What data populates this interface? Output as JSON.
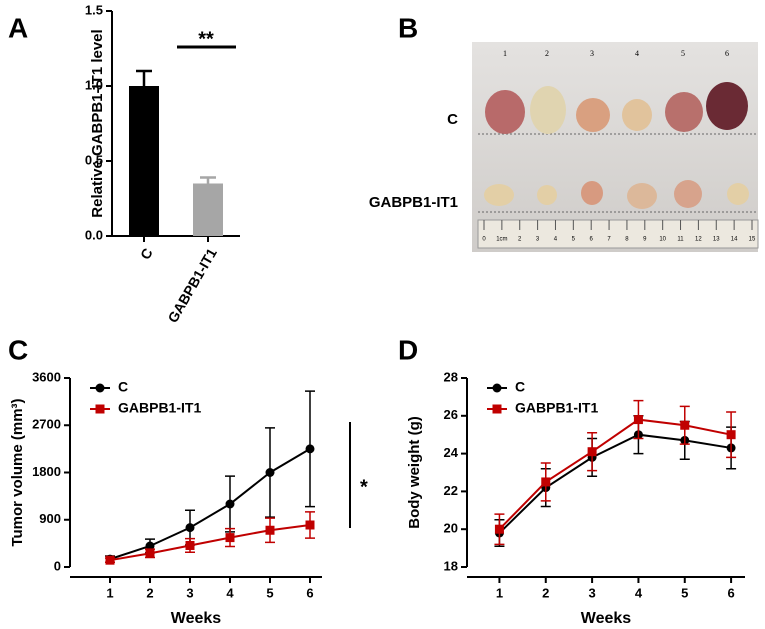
{
  "panel_labels": [
    "A",
    "B",
    "C",
    "D"
  ],
  "photo": {
    "row_labels": [
      "C",
      "GABPB1-IT1"
    ],
    "lane_labels": [
      "1",
      "2",
      "3",
      "4",
      "5",
      "6"
    ],
    "ruler_labels": [
      "0",
      "1cm",
      "2",
      "3",
      "4",
      "5",
      "6",
      "7",
      "8",
      "9",
      "10",
      "11",
      "12",
      "13",
      "14",
      "15"
    ]
  },
  "chart_data": [
    {
      "type": "bar",
      "y_label": "Relative GABPB1-IT1 level",
      "categories": [
        "C",
        "GABPB1-IT1"
      ],
      "values": [
        1.0,
        0.35
      ],
      "errors": [
        0.1,
        0.04
      ],
      "colors": [
        "#000000",
        "#a6a6a6"
      ],
      "ylim": [
        0,
        1.5
      ],
      "yticks": [
        {
          "value": 0,
          "label": "0.0"
        },
        {
          "value": 0.5,
          "label": "0.5"
        },
        {
          "value": 1,
          "label": "1.0"
        },
        {
          "value": 1.5,
          "label": "1.5"
        }
      ],
      "annotation": "**"
    },
    {
      "type": "line",
      "y_label": "Tumor volume (mm³)",
      "x_label": "Weeks",
      "x": [
        1,
        2,
        3,
        4,
        5,
        6
      ],
      "series": [
        {
          "name": "C",
          "color": "#000000",
          "marker": "circle",
          "values": [
            150,
            400,
            750,
            1200,
            1800,
            2250
          ],
          "errors": [
            60,
            130,
            330,
            530,
            850,
            1100
          ]
        },
        {
          "name": "GABPB1-IT1",
          "color": "#c00000",
          "marker": "square",
          "values": [
            130,
            260,
            410,
            560,
            700,
            800
          ],
          "errors": [
            40,
            80,
            130,
            170,
            230,
            250
          ]
        }
      ],
      "xlim": [
        0,
        6.3
      ],
      "xticks": [
        1,
        2,
        3,
        4,
        5,
        6
      ],
      "ylim": [
        0,
        3600
      ],
      "yticks": [
        0,
        900,
        1800,
        2700,
        3600
      ],
      "legend": "upper-left",
      "annotation": "*"
    },
    {
      "type": "line",
      "y_label": "Body weight (g)",
      "x_label": "Weeks",
      "x": [
        1,
        2,
        3,
        4,
        5,
        6
      ],
      "series": [
        {
          "name": "C",
          "color": "#000000",
          "marker": "circle",
          "values": [
            19.8,
            22.2,
            23.8,
            25.0,
            24.7,
            24.3
          ],
          "errors": [
            0.7,
            1.0,
            1.0,
            1.0,
            1.0,
            1.1
          ]
        },
        {
          "name": "GABPB1-IT1",
          "color": "#c00000",
          "marker": "square",
          "values": [
            20.0,
            22.5,
            24.1,
            25.8,
            25.5,
            25.0
          ],
          "errors": [
            0.8,
            1.0,
            1.0,
            1.0,
            1.0,
            1.2
          ]
        }
      ],
      "xlim": [
        0.3,
        6.3
      ],
      "xticks": [
        1,
        2,
        3,
        4,
        5,
        6
      ],
      "ylim": [
        18,
        28
      ],
      "yticks": [
        18,
        20,
        22,
        24,
        26,
        28
      ],
      "legend": "upper-left"
    }
  ]
}
